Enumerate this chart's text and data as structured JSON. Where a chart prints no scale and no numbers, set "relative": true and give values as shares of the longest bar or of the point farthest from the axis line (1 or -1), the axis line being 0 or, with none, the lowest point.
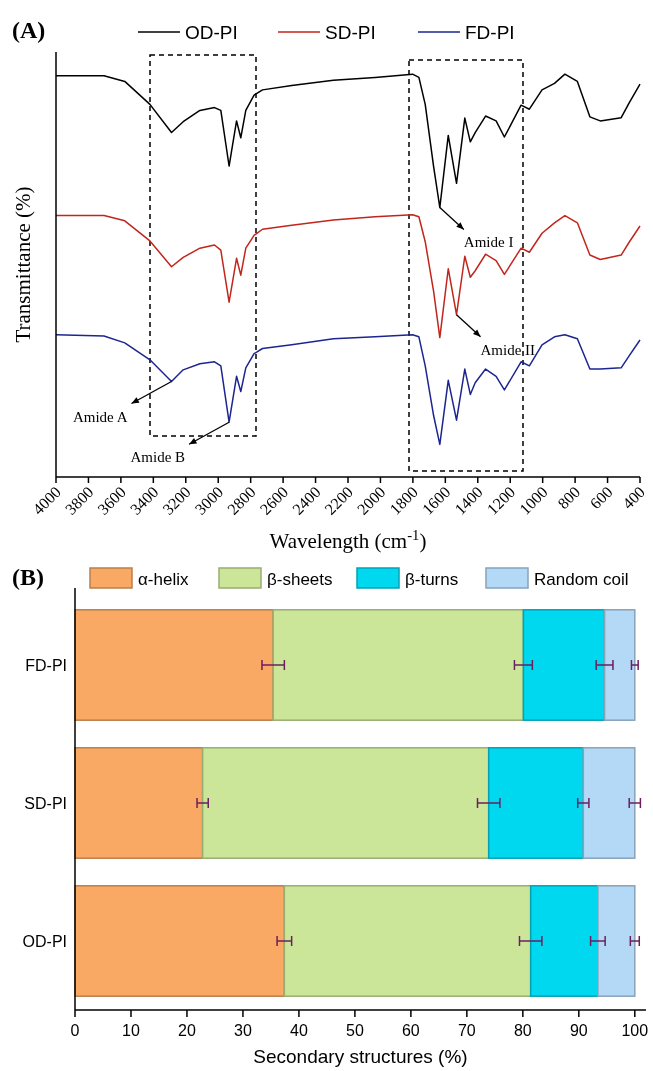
{
  "chart_data": [
    {
      "type": "line",
      "title": "(A)",
      "xlabel": "Wavelength (cm$^{-1}$)",
      "ylabel": "Transmittance (%)",
      "relative": true,
      "xlim": [
        4000,
        400
      ],
      "xticks": [
        4000,
        3800,
        3600,
        3400,
        3200,
        3000,
        2800,
        2600,
        2400,
        2200,
        2000,
        1800,
        1600,
        1400,
        1200,
        1000,
        800,
        600,
        400
      ],
      "legend": "top",
      "grid": false,
      "x": [
        4000,
        3704,
        3576,
        3421,
        3288,
        3216,
        3113,
        3023,
        2984,
        2933,
        2887,
        2861,
        2830,
        2779,
        2727,
        2547,
        2290,
        2033,
        1802,
        1763,
        1724,
        1672,
        1634,
        1582,
        1531,
        1480,
        1446,
        1416,
        1352,
        1287,
        1236,
        1133,
        1082,
        1004,
        927,
        863,
        786,
        709,
        645,
        516,
        465,
        400
      ],
      "series": [
        {
          "name": "OD-PI",
          "color": "#000000",
          "values": [
            0.996,
            0.996,
            0.982,
            0.925,
            0.855,
            0.882,
            0.91,
            0.917,
            0.91,
            0.772,
            0.884,
            0.842,
            0.91,
            0.948,
            0.961,
            0.972,
            0.985,
            0.992,
            1,
            0.992,
            0.925,
            0.77,
            0.669,
            0.848,
            0.729,
            0.891,
            0.832,
            0.855,
            0.896,
            0.884,
            0.844,
            0.923,
            0.913,
            0.961,
            0.977,
            1,
            0.982,
            0.894,
            0.884,
            0.892,
            0.93,
            0.975
          ]
        },
        {
          "name": "SD-PI",
          "color": "#c0261c",
          "values": [
            0.649,
            0.649,
            0.636,
            0.586,
            0.522,
            0.545,
            0.568,
            0.576,
            0.563,
            0.434,
            0.543,
            0.501,
            0.568,
            0.6,
            0.615,
            0.625,
            0.638,
            0.646,
            0.651,
            0.646,
            0.584,
            0.46,
            0.346,
            0.517,
            0.403,
            0.548,
            0.496,
            0.512,
            0.553,
            0.537,
            0.503,
            0.568,
            0.558,
            0.605,
            0.631,
            0.649,
            0.631,
            0.551,
            0.54,
            0.551,
            0.584,
            0.623
          ]
        },
        {
          "name": "FD-PI",
          "color": "#1c2590",
          "values": [
            0.353,
            0.35,
            0.333,
            0.291,
            0.237,
            0.266,
            0.281,
            0.286,
            0.276,
            0.136,
            0.25,
            0.212,
            0.271,
            0.306,
            0.319,
            0.328,
            0.343,
            0.348,
            0.353,
            0.348,
            0.276,
            0.152,
            0.081,
            0.24,
            0.141,
            0.268,
            0.205,
            0.234,
            0.268,
            0.25,
            0.216,
            0.286,
            0.276,
            0.328,
            0.348,
            0.353,
            0.343,
            0.268,
            0.268,
            0.271,
            0.302,
            0.34
          ]
        }
      ],
      "annotations": [
        {
          "text": "Amide A",
          "x": 3288,
          "y": 0.237
        },
        {
          "text": "Amide B",
          "x": 2933,
          "y": 0.136
        },
        {
          "text": "Amide I",
          "x": 1634,
          "y": 0.669
        },
        {
          "text": "Amide II",
          "x": 1531,
          "y": 0.403
        }
      ]
    },
    {
      "type": "bar",
      "orientation": "horizontal",
      "stacked": true,
      "title": "(B)",
      "xlabel": "Secondary structures (%)",
      "categories": [
        "FD-PI",
        "SD-PI",
        "OD-PI"
      ],
      "xlim": [
        0,
        102
      ],
      "xticks": [
        0,
        10,
        20,
        30,
        40,
        50,
        60,
        70,
        80,
        90,
        100
      ],
      "legend": "top",
      "grid": false,
      "series": [
        {
          "name": "α-helix",
          "color": "#f9a964",
          "values": [
            35.4,
            22.8,
            37.4
          ],
          "errors": [
            2.0,
            1.0,
            1.3
          ]
        },
        {
          "name": "β-sheets",
          "color": "#cce699",
          "values": [
            44.7,
            51.1,
            44.0
          ],
          "errors": [
            1.6,
            2.0,
            2.0
          ]
        },
        {
          "name": "β-turns",
          "color": "#00d8f0",
          "values": [
            14.5,
            16.9,
            12.0
          ],
          "errors": [
            1.5,
            1.0,
            1.3
          ]
        },
        {
          "name": "Random coil",
          "color": "#b3d9f7",
          "values": [
            5.4,
            9.2,
            6.6
          ],
          "errors": [
            0.6,
            1.0,
            0.8
          ]
        }
      ]
    }
  ]
}
